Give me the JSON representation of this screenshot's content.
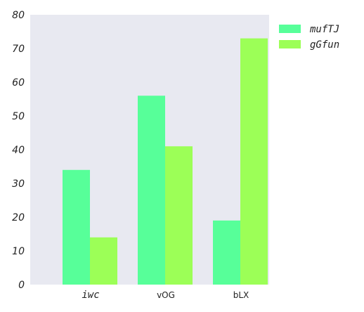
{
  "chart_data": {
    "type": "bar",
    "categories": [
      "iwc",
      "vOG",
      "bLX"
    ],
    "series": [
      {
        "name": "mufTJ",
        "values": [
          34,
          56,
          19
        ],
        "color": "#57ff99"
      },
      {
        "name": "gGfun",
        "values": [
          14,
          41,
          73
        ],
        "color": "#9cff57"
      }
    ],
    "ylim": [
      0,
      80
    ],
    "yticks": [
      0,
      10,
      20,
      30,
      40,
      50,
      60,
      70,
      80
    ],
    "grid": false,
    "legend": "top-right",
    "background": "#e8e9f1"
  }
}
